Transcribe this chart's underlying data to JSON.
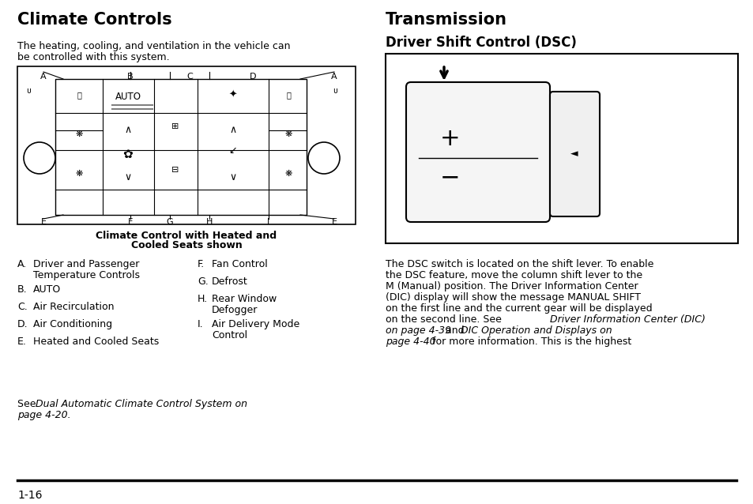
{
  "bg_color": "#ffffff",
  "left_title": "Climate Controls",
  "right_title": "Transmission",
  "dsc_subtitle": "Driver Shift Control (DSC)",
  "climate_intro_line1": "The heating, cooling, and ventilation in the vehicle can",
  "climate_intro_line2": "be controlled with this system.",
  "diagram_caption_line1": "Climate Control with Heated and",
  "diagram_caption_line2": "Cooled Seats shown",
  "list_items": [
    [
      "A.",
      "Driver and Passenger",
      "Temperature Controls"
    ],
    [
      "B.",
      "AUTO",
      ""
    ],
    [
      "C.",
      "Air Recirculation",
      ""
    ],
    [
      "D.",
      "Air Conditioning",
      ""
    ],
    [
      "E.",
      "Heated and Cooled Seats",
      ""
    ]
  ],
  "list_items_right": [
    [
      "F.",
      "Fan Control",
      ""
    ],
    [
      "G.",
      "Defrost",
      ""
    ],
    [
      "H.",
      "Rear Window",
      "Defogger"
    ],
    [
      "I.",
      "Air Delivery Mode",
      "Control"
    ]
  ],
  "see_normal": "See ",
  "see_italic": "Dual Automatic Climate Control System on",
  "see_italic2": "page 4-20",
  "see_end": ".",
  "dsc_lines": [
    "The DSC switch is located on the shift lever. To enable",
    "the DSC feature, move the column shift lever to the",
    "M (Manual) position. The Driver Information Center",
    "(DIC) display will show the message MANUAL SHIFT",
    "on the first line and the current gear will be displayed",
    "on the second line. See "
  ],
  "dsc_italic1a": "Driver Information Center (DIC)",
  "dsc_italic1b": "on page 4-39",
  "dsc_and": " and ",
  "dsc_italic2a": "DIC Operation and Displays on",
  "dsc_italic2b": "page 4-40",
  "dsc_end": " for more information. This is the highest",
  "page_number": "1-16"
}
